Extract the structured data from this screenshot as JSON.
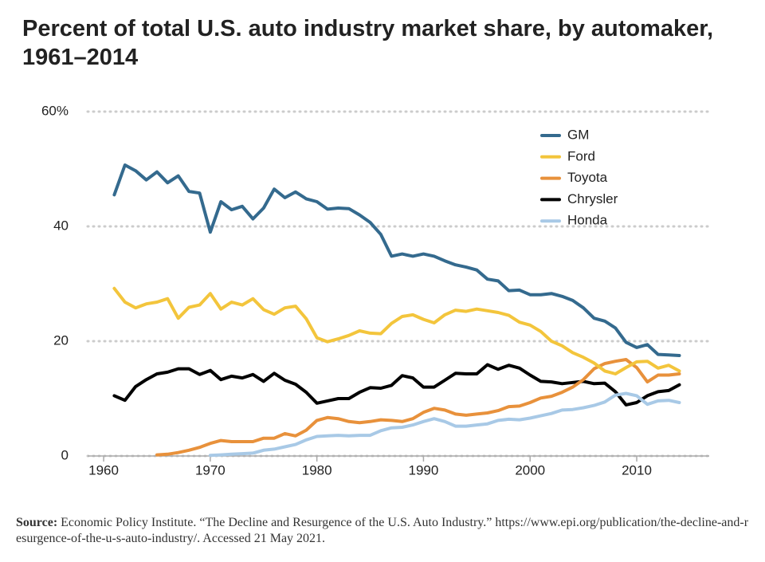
{
  "chart_data": {
    "type": "line",
    "title": "Percent of total U.S. auto industry market share, by automaker, 1961–2014",
    "x": [
      1961,
      1962,
      1963,
      1964,
      1965,
      1966,
      1967,
      1968,
      1969,
      1970,
      1971,
      1972,
      1973,
      1974,
      1975,
      1976,
      1977,
      1978,
      1979,
      1980,
      1981,
      1982,
      1983,
      1984,
      1985,
      1986,
      1987,
      1988,
      1989,
      1990,
      1991,
      1992,
      1993,
      1994,
      1995,
      1996,
      1997,
      1998,
      1999,
      2000,
      2001,
      2002,
      2003,
      2004,
      2005,
      2006,
      2007,
      2008,
      2009,
      2010,
      2011,
      2012,
      2013,
      2014
    ],
    "series": [
      {
        "name": "GM",
        "color": "#346a8e",
        "values": [
          45.5,
          50.7,
          49.7,
          48.1,
          49.5,
          47.6,
          48.8,
          46.1,
          45.8,
          39.0,
          44.3,
          42.9,
          43.5,
          41.3,
          43.2,
          46.5,
          45.0,
          46.0,
          44.8,
          44.3,
          43.0,
          43.2,
          43.1,
          42.0,
          40.7,
          38.6,
          34.8,
          35.2,
          34.8,
          35.2,
          34.8,
          34.0,
          33.3,
          32.9,
          32.4,
          30.8,
          30.5,
          28.8,
          28.9,
          28.1,
          28.1,
          28.3,
          27.8,
          27.1,
          25.8,
          24.0,
          23.5,
          22.3,
          19.8,
          18.9,
          19.4,
          17.7,
          17.6,
          17.5
        ]
      },
      {
        "name": "Ford",
        "color": "#f3c53c",
        "values": [
          29.2,
          26.8,
          25.8,
          26.5,
          26.8,
          27.4,
          24.0,
          25.9,
          26.3,
          28.3,
          25.6,
          26.8,
          26.3,
          27.4,
          25.5,
          24.7,
          25.8,
          26.1,
          23.9,
          20.6,
          19.9,
          20.4,
          21.0,
          21.8,
          21.4,
          21.3,
          23.1,
          24.3,
          24.6,
          23.8,
          23.2,
          24.6,
          25.4,
          25.2,
          25.6,
          25.3,
          25.0,
          24.5,
          23.3,
          22.8,
          21.7,
          20.0,
          19.2,
          18.0,
          17.2,
          16.2,
          14.8,
          14.3,
          15.4,
          16.4,
          16.5,
          15.3,
          15.8,
          14.8
        ]
      },
      {
        "name": "Toyota",
        "color": "#e8913b",
        "values": [
          null,
          null,
          null,
          null,
          0.2,
          0.3,
          0.6,
          1.0,
          1.5,
          2.2,
          2.7,
          2.5,
          2.5,
          2.5,
          3.1,
          3.1,
          3.9,
          3.5,
          4.5,
          6.2,
          6.7,
          6.5,
          6.0,
          5.8,
          6.0,
          6.3,
          6.2,
          6.0,
          6.5,
          7.6,
          8.3,
          8.0,
          7.3,
          7.1,
          7.3,
          7.5,
          7.9,
          8.6,
          8.7,
          9.3,
          10.1,
          10.4,
          11.1,
          12.0,
          13.3,
          15.2,
          16.1,
          16.5,
          16.8,
          15.4,
          12.9,
          14.1,
          14.1,
          14.3
        ]
      },
      {
        "name": "Chrysler",
        "color": "#000000",
        "values": [
          10.5,
          9.7,
          12.1,
          13.3,
          14.3,
          14.6,
          15.2,
          15.2,
          14.2,
          14.9,
          13.3,
          13.9,
          13.6,
          14.2,
          13.0,
          14.4,
          13.2,
          12.5,
          11.1,
          9.2,
          9.6,
          10.0,
          10.0,
          11.1,
          11.9,
          11.8,
          12.3,
          14.0,
          13.6,
          12.0,
          12.0,
          13.2,
          14.4,
          14.3,
          14.3,
          15.9,
          15.1,
          15.8,
          15.3,
          14.1,
          13.0,
          12.9,
          12.6,
          12.8,
          13.0,
          12.6,
          12.7,
          11.2,
          8.9,
          9.3,
          10.5,
          11.2,
          11.4,
          12.4
        ]
      },
      {
        "name": "Honda",
        "color": "#a8c9e6",
        "values": [
          null,
          null,
          null,
          null,
          null,
          null,
          null,
          null,
          null,
          0.1,
          0.2,
          0.3,
          0.4,
          0.5,
          1.0,
          1.2,
          1.6,
          2.0,
          2.8,
          3.4,
          3.5,
          3.6,
          3.5,
          3.6,
          3.6,
          4.4,
          4.9,
          5.0,
          5.4,
          6.0,
          6.5,
          6.0,
          5.2,
          5.2,
          5.4,
          5.6,
          6.2,
          6.4,
          6.3,
          6.6,
          7.0,
          7.4,
          8.0,
          8.1,
          8.4,
          8.8,
          9.4,
          10.6,
          10.9,
          10.5,
          9.0,
          9.6,
          9.7,
          9.3
        ]
      }
    ],
    "xlim": [
      1958.5,
      2016.8
    ],
    "xticks": [
      1960,
      1970,
      1980,
      1990,
      2000,
      2010
    ],
    "ylim": [
      0,
      60
    ],
    "yticks": [
      0,
      20,
      40,
      {
        "value": 60,
        "label": "60%"
      }
    ],
    "grid": true,
    "legend": "top-right",
    "source": {
      "label": "Source:",
      "text": "Economic Policy Institute. “The Decline and Resurgence of the U.S. Auto Industry.” https://www.epi.org/publication/the-decline-and-resurgence-of-the-u-s-auto-industry/. Accessed 21 May 2021."
    }
  }
}
